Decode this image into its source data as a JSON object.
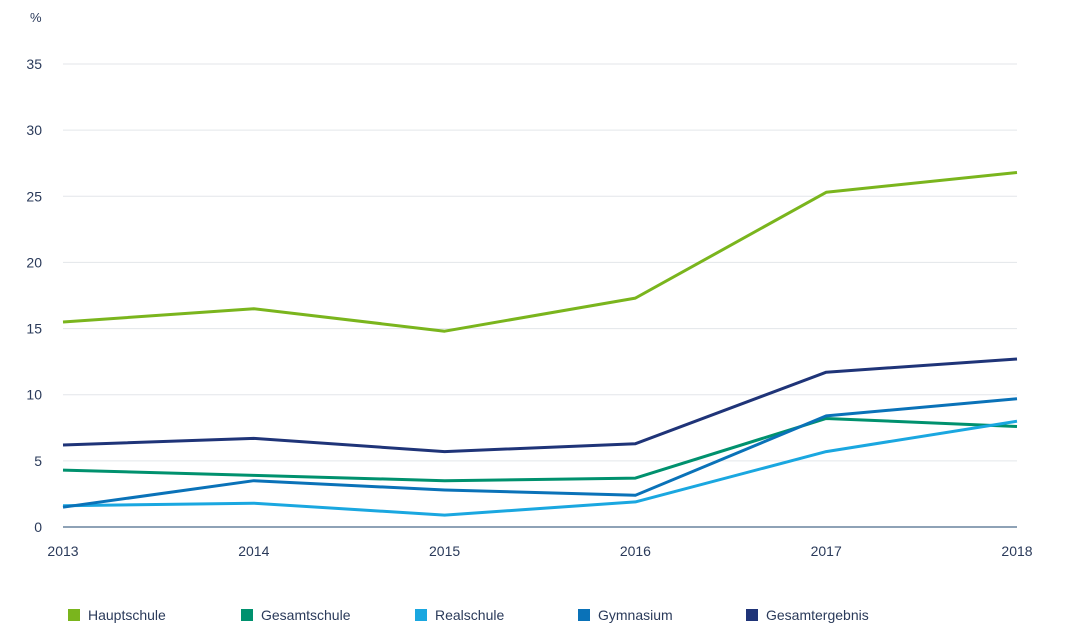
{
  "chart_data": {
    "type": "line",
    "unit_label": "%",
    "x": [
      "2013",
      "2014",
      "2015",
      "2016",
      "2017",
      "2018"
    ],
    "yticks": [
      "0",
      "5",
      "10",
      "15",
      "20",
      "25",
      "30",
      "35"
    ],
    "ylim": [
      0,
      35
    ],
    "grid": true,
    "legend_position": "bottom",
    "series": [
      {
        "name": "Hauptschule",
        "color": "#7ab51d",
        "values": [
          15.5,
          16.5,
          14.8,
          17.3,
          25.3,
          26.8
        ]
      },
      {
        "name": "Gesamtschule",
        "color": "#00916e",
        "values": [
          4.3,
          3.9,
          3.5,
          3.7,
          8.2,
          7.6
        ]
      },
      {
        "name": "Realschule",
        "color": "#1aa7e0",
        "values": [
          1.6,
          1.8,
          0.9,
          1.9,
          5.7,
          8.0
        ]
      },
      {
        "name": "Gymnasium",
        "color": "#0a72b8",
        "values": [
          1.5,
          3.5,
          2.8,
          2.4,
          8.4,
          9.7
        ]
      },
      {
        "name": "Gesamtergebnis",
        "color": "#1f3478",
        "values": [
          6.2,
          6.7,
          5.7,
          6.3,
          11.7,
          12.7
        ]
      }
    ]
  }
}
